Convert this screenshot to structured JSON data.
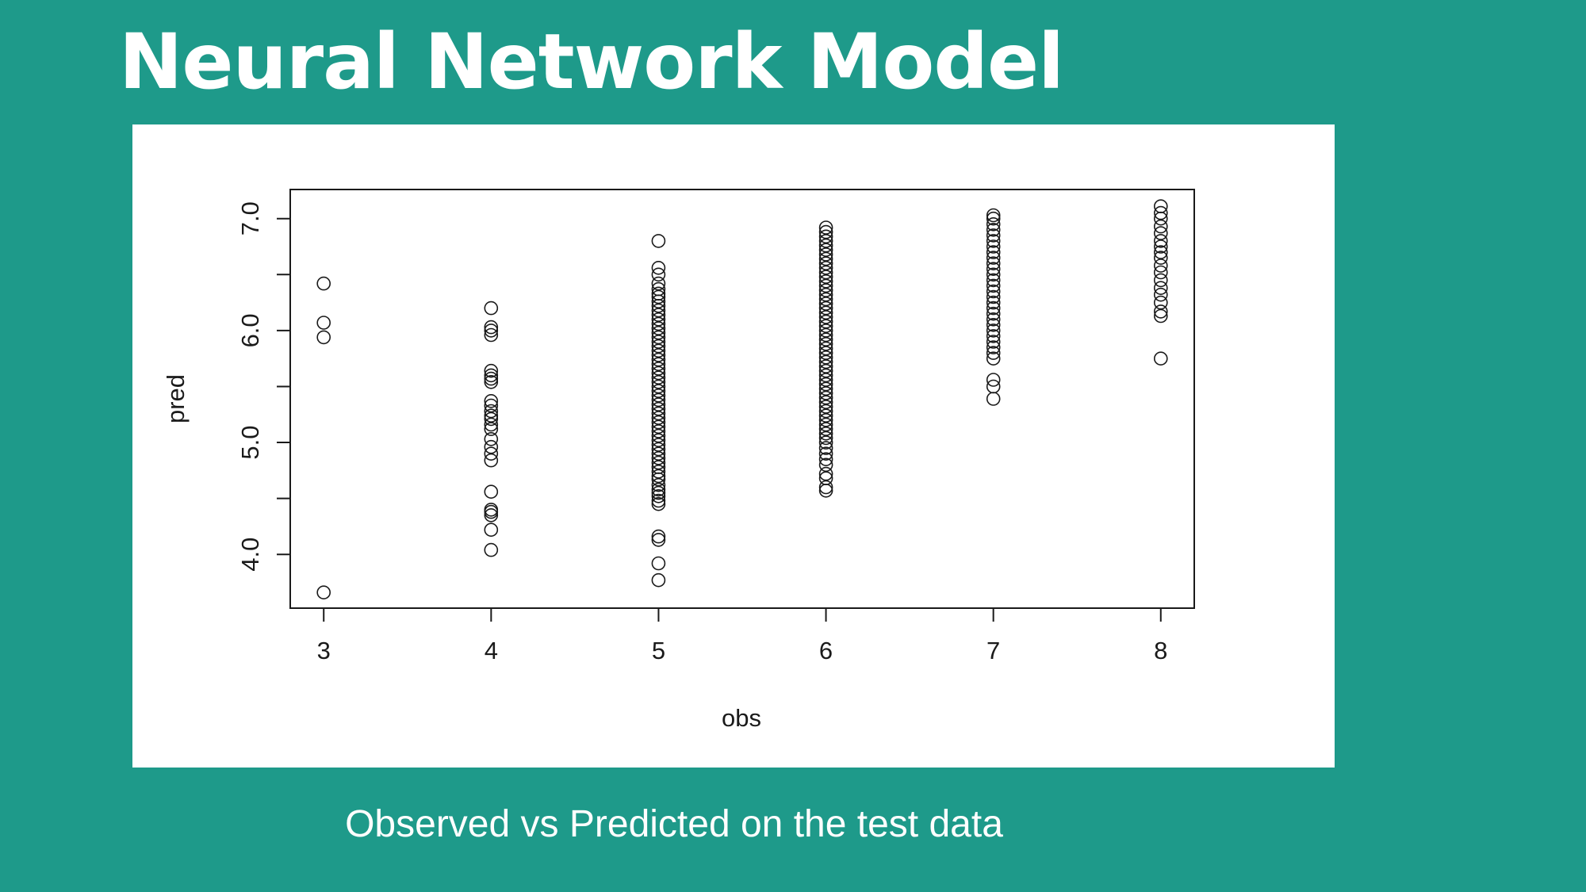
{
  "slide": {
    "title": "Neural Network Model",
    "caption": "Observed vs Predicted on the test data",
    "background_color": "#1e9a8a",
    "text_color": "#ffffff",
    "panel_color": "#ffffff"
  },
  "chart_data": {
    "type": "scatter",
    "xlabel": "obs",
    "ylabel": "pred",
    "x_ticks": [
      "3",
      "4",
      "5",
      "6",
      "7",
      "8"
    ],
    "y_ticks": [
      "4.0",
      "5.0",
      "6.0",
      "7.0"
    ],
    "xlim": [
      2.8,
      8.2
    ],
    "ylim": [
      3.52,
      7.26
    ],
    "marker": "open-circle",
    "marker_color": "#1a1a1a",
    "grid": false,
    "points": {
      "3": [
        3.66,
        5.94,
        6.07,
        6.42
      ],
      "4": [
        4.04,
        4.22,
        4.35,
        4.38,
        4.4,
        4.56,
        4.84,
        4.9,
        4.96,
        5.03,
        5.12,
        5.16,
        5.21,
        5.24,
        5.28,
        5.33,
        5.37,
        5.54,
        5.57,
        5.6,
        5.64,
        5.96,
        6.0,
        6.03,
        6.2
      ],
      "5": [
        3.77,
        3.92,
        4.13,
        4.16,
        4.45,
        4.48,
        4.52,
        4.55,
        4.58,
        4.62,
        4.67,
        4.7,
        4.74,
        4.78,
        4.82,
        4.86,
        4.9,
        4.94,
        4.98,
        5.02,
        5.06,
        5.1,
        5.14,
        5.18,
        5.22,
        5.26,
        5.3,
        5.34,
        5.38,
        5.42,
        5.46,
        5.5,
        5.54,
        5.58,
        5.62,
        5.66,
        5.7,
        5.74,
        5.78,
        5.82,
        5.86,
        5.9,
        5.94,
        5.98,
        6.02,
        6.06,
        6.1,
        6.14,
        6.18,
        6.22,
        6.26,
        6.3,
        6.33,
        6.37,
        6.42,
        6.5,
        6.56,
        6.8
      ],
      "6": [
        4.57,
        4.6,
        4.68,
        4.72,
        4.8,
        4.85,
        4.9,
        4.95,
        5.0,
        5.04,
        5.08,
        5.12,
        5.16,
        5.2,
        5.24,
        5.28,
        5.32,
        5.36,
        5.4,
        5.44,
        5.48,
        5.52,
        5.56,
        5.6,
        5.64,
        5.68,
        5.72,
        5.76,
        5.8,
        5.84,
        5.88,
        5.92,
        5.96,
        6.0,
        6.04,
        6.08,
        6.12,
        6.16,
        6.2,
        6.24,
        6.28,
        6.32,
        6.36,
        6.4,
        6.44,
        6.48,
        6.52,
        6.56,
        6.6,
        6.64,
        6.68,
        6.72,
        6.76,
        6.8,
        6.84,
        6.88,
        6.92
      ],
      "7": [
        5.39,
        5.5,
        5.56,
        5.75,
        5.8,
        5.85,
        5.9,
        5.95,
        6.0,
        6.05,
        6.1,
        6.15,
        6.2,
        6.25,
        6.3,
        6.35,
        6.4,
        6.45,
        6.5,
        6.55,
        6.6,
        6.65,
        6.7,
        6.75,
        6.8,
        6.85,
        6.9,
        6.95,
        7.0,
        7.03
      ],
      "8": [
        5.75,
        6.13,
        6.17,
        6.25,
        6.32,
        6.38,
        6.45,
        6.52,
        6.58,
        6.65,
        6.7,
        6.75,
        6.8,
        6.87,
        6.93,
        7.0,
        7.05,
        7.11
      ]
    }
  }
}
